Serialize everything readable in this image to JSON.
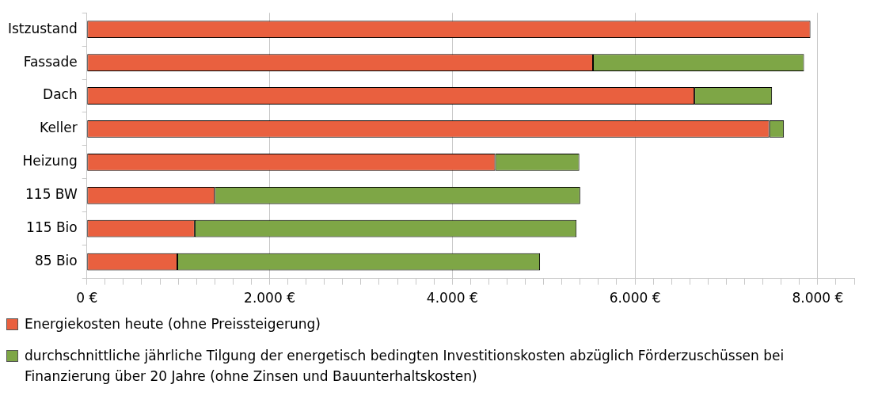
{
  "chart_data": {
    "type": "bar",
    "orientation": "horizontal",
    "stacked": true,
    "categories": [
      "Istzustand",
      "Fassade",
      "Dach",
      "Keller",
      "Heizung",
      "115 BW",
      "115 Bio",
      "85 Bio"
    ],
    "series": [
      {
        "name": "Energiekosten heute (ohne Preissteigerung)",
        "color": "#e9603f",
        "values": [
          7920,
          5540,
          6650,
          7470,
          4470,
          1400,
          1180,
          990
        ]
      },
      {
        "name": "durchschnittliche jährliche Tilgung der energetisch bedingten Investitionskosten abzüglich Förderzuschüssen bei Finanzierung über 20 Jahre (ohne Zinsen und Bauunterhaltskosten)",
        "color": "#7ea646",
        "values": [
          0,
          2310,
          850,
          160,
          920,
          4000,
          4180,
          3970
        ]
      }
    ],
    "xlim": [
      0,
      8400
    ],
    "xticks": [
      {
        "value": 0,
        "label": "0 €"
      },
      {
        "value": 200,
        "label": null
      },
      {
        "value": 400,
        "label": null
      },
      {
        "value": 600,
        "label": null
      },
      {
        "value": 800,
        "label": null
      },
      {
        "value": 1000,
        "label": null
      },
      {
        "value": 1200,
        "label": null
      },
      {
        "value": 1400,
        "label": null
      },
      {
        "value": 1600,
        "label": null
      },
      {
        "value": 1800,
        "label": null
      },
      {
        "value": 2000,
        "label": "2.000 €"
      },
      {
        "value": 2200,
        "label": null
      },
      {
        "value": 2400,
        "label": null
      },
      {
        "value": 2600,
        "label": null
      },
      {
        "value": 2800,
        "label": null
      },
      {
        "value": 3000,
        "label": null
      },
      {
        "value": 3200,
        "label": null
      },
      {
        "value": 3400,
        "label": null
      },
      {
        "value": 3600,
        "label": null
      },
      {
        "value": 3800,
        "label": null
      },
      {
        "value": 4000,
        "label": "4.000 €"
      },
      {
        "value": 4200,
        "label": null
      },
      {
        "value": 4400,
        "label": null
      },
      {
        "value": 4600,
        "label": null
      },
      {
        "value": 4800,
        "label": null
      },
      {
        "value": 5000,
        "label": null
      },
      {
        "value": 5200,
        "label": null
      },
      {
        "value": 5400,
        "label": null
      },
      {
        "value": 5600,
        "label": null
      },
      {
        "value": 5800,
        "label": null
      },
      {
        "value": 6000,
        "label": "6.000 €"
      },
      {
        "value": 6200,
        "label": null
      },
      {
        "value": 6400,
        "label": null
      },
      {
        "value": 6600,
        "label": null
      },
      {
        "value": 6800,
        "label": null
      },
      {
        "value": 7000,
        "label": null
      },
      {
        "value": 7200,
        "label": null
      },
      {
        "value": 7400,
        "label": null
      },
      {
        "value": 7600,
        "label": null
      },
      {
        "value": 7800,
        "label": null
      },
      {
        "value": 8000,
        "label": "8.000 €"
      },
      {
        "value": 8200,
        "label": null
      },
      {
        "value": 8400,
        "label": null
      }
    ],
    "grid": "x",
    "legend": "bottom"
  }
}
